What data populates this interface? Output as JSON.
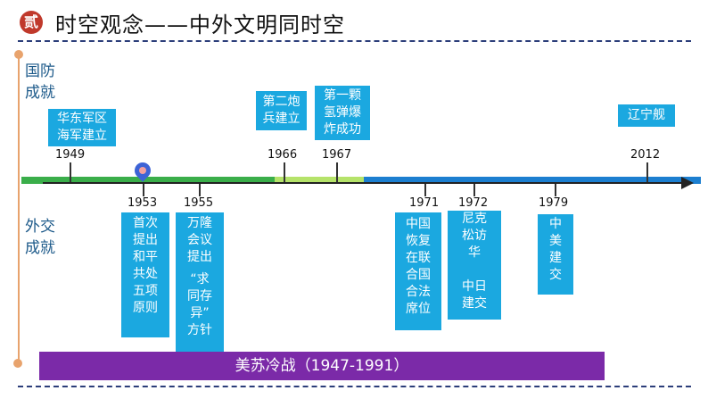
{
  "header": {
    "badge": "贰",
    "title": "时空观念——中外文明同时空"
  },
  "labels": {
    "defense": [
      "国防",
      "成就"
    ],
    "diplomacy": [
      "外交",
      "成就"
    ]
  },
  "defense_events": [
    {
      "year": "1949",
      "lines": [
        "华东军区",
        "海军建立"
      ]
    },
    {
      "year": "1966",
      "lines": [
        "第二炮",
        "兵建立"
      ]
    },
    {
      "year": "1967",
      "lines": [
        "第一颗",
        "氢弹爆",
        "炸成功"
      ]
    },
    {
      "year": "2012",
      "lines": [
        "辽宁舰"
      ]
    }
  ],
  "diplomacy_events": [
    {
      "year": "1953",
      "lines": [
        "首次",
        "提出",
        "和平",
        "共处",
        "五项",
        "原则"
      ]
    },
    {
      "year": "1955",
      "lines": [
        "万隆",
        "会议",
        "提出",
        "“求",
        "同存",
        "异”",
        "方针"
      ]
    },
    {
      "year": "1971",
      "lines": [
        "中国",
        "恢复",
        "在联",
        "合国",
        "合法",
        "席位"
      ]
    },
    {
      "year": "1972",
      "lines": [
        "尼克",
        "松访",
        "华",
        "",
        "中日",
        "建交"
      ]
    },
    {
      "year": "1979",
      "lines": [
        "中",
        "美",
        "建",
        "交"
      ]
    }
  ],
  "cold_war": "美苏冷战（1947-1991）",
  "colors": {
    "badge": "#c0392b",
    "box": "#1ba8e0",
    "band_green": "#3aae4a",
    "band_lightgreen": "#b5e36a",
    "band_blue": "#1c7fd0",
    "cold_war": "#7b2aa8",
    "timeline_left": "#e8a36d"
  }
}
